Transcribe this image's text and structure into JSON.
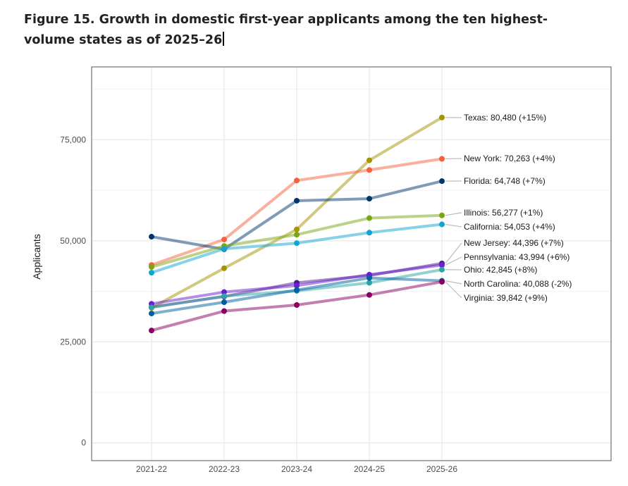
{
  "chart_data": {
    "type": "line",
    "title": "Figure 15. Growth in domestic first-year applicants among the ten highest-volume states as of 2025–26",
    "xlabel": "",
    "ylabel": "Applicants",
    "categories": [
      "2021-22",
      "2022-23",
      "2023-24",
      "2024-25",
      "2025-26"
    ],
    "ylim": [
      -4400,
      93000
    ],
    "yticks": [
      0,
      25000,
      50000,
      75000
    ],
    "ytick_labels": [
      "0",
      "25,000",
      "50,000",
      "75,000"
    ],
    "grid": true,
    "legend": "direct labels at right end of lines",
    "series": [
      {
        "name": "Texas",
        "color": "#a39400",
        "values": [
          33400,
          43200,
          52800,
          69900,
          80480
        ],
        "label": "Texas: 80,480 (+15%)"
      },
      {
        "name": "New York",
        "color": "#f4623a",
        "values": [
          44000,
          50300,
          64900,
          67500,
          70263
        ],
        "label": "New York: 70,263 (+4%)"
      },
      {
        "name": "Florida",
        "color": "#00376b",
        "values": [
          51000,
          47900,
          59900,
          60400,
          64748
        ],
        "label": "Florida: 64,748 (+7%)"
      },
      {
        "name": "Illinois",
        "color": "#7aa614",
        "values": [
          43500,
          48700,
          51500,
          55600,
          56277
        ],
        "label": "Illinois: 56,277 (+1%)"
      },
      {
        "name": "California",
        "color": "#10a5d0",
        "values": [
          42100,
          48000,
          49400,
          52000,
          54053
        ],
        "label": "California: 54,053 (+4%)"
      },
      {
        "name": "New Jersey",
        "color": "#4b1a8c",
        "values": [
          33600,
          36200,
          39600,
          41400,
          44396
        ],
        "label": "New Jersey: 44,396 (+7%)"
      },
      {
        "name": "Pennsylvania",
        "color": "#6a1fd1",
        "values": [
          34400,
          37300,
          38900,
          41600,
          43994
        ],
        "label": "Pennsylvania: 43,994 (+6%)"
      },
      {
        "name": "Ohio",
        "color": "#2aa5a5",
        "values": [
          33500,
          36300,
          37600,
          39600,
          42845
        ],
        "label": "Ohio: 42,845 (+8%)"
      },
      {
        "name": "North Carolina",
        "color": "#00609f",
        "values": [
          32000,
          34800,
          37800,
          40800,
          40088
        ],
        "label": "North Carolina: 40,088 (-2%)"
      },
      {
        "name": "Virginia",
        "color": "#8a0060",
        "values": [
          27800,
          32600,
          34100,
          36600,
          39842
        ],
        "label": "Virginia: 39,842 (+9%)"
      }
    ]
  }
}
